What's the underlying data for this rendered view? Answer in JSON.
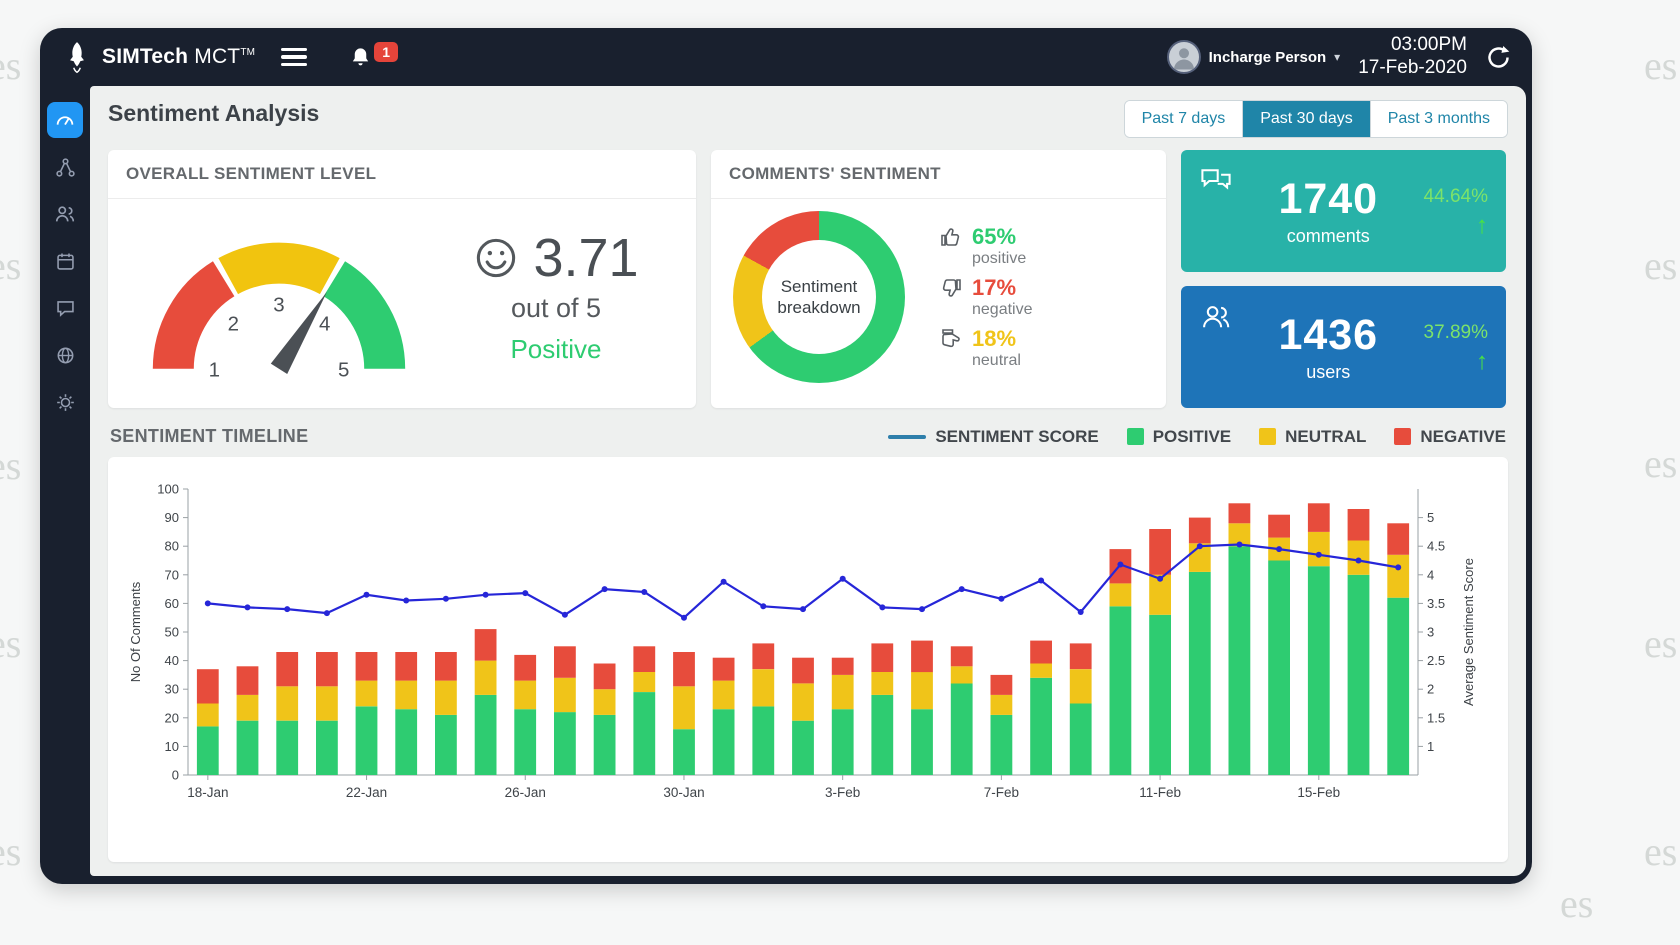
{
  "watermark": {
    "text": "es"
  },
  "header": {
    "brand_bold": "SIMTech",
    "brand_light": "MCT",
    "brand_tm": "TM",
    "notification_count": "1",
    "user_name": "Incharge Person",
    "time": "03:00PM",
    "date": "17-Feb-2020"
  },
  "sidebar": {
    "items": [
      "dashboard",
      "workflow",
      "users",
      "calendar",
      "comments",
      "globe",
      "settings"
    ]
  },
  "page": {
    "title": "Sentiment Analysis",
    "ranges": [
      {
        "label": "Past 7 days",
        "active": false
      },
      {
        "label": "Past 30 days",
        "active": true
      },
      {
        "label": "Past 3 months",
        "active": false
      }
    ]
  },
  "overall": {
    "title": "OVERALL SENTIMENT LEVEL",
    "score": "3.71",
    "out_of": "out of 5",
    "status": "Positive",
    "status_color": "#2ecc71",
    "gauge": {
      "min": 1,
      "max": 5,
      "value": 3.71,
      "labels": [
        "1",
        "2",
        "3",
        "4",
        "5"
      ],
      "segments": [
        {
          "to": 2.33,
          "color": "#e74c3c"
        },
        {
          "to": 3.67,
          "color": "#f1c40f"
        },
        {
          "to": 5,
          "color": "#2ecc71"
        }
      ],
      "needle_color": "#4b5055"
    }
  },
  "comments_card": {
    "title": "COMMENTS' SENTIMENT",
    "donut": {
      "center_line1": "Sentiment",
      "center_line2": "breakdown",
      "slices": [
        {
          "label": "positive",
          "value": 65,
          "color": "#2ecc71"
        },
        {
          "label": "neutral",
          "value": 18,
          "color": "#f0c419"
        },
        {
          "label": "negative",
          "value": 17,
          "color": "#e74c3c"
        }
      ]
    },
    "stats": [
      {
        "value": "65%",
        "label": "positive",
        "color": "#2ecc71"
      },
      {
        "value": "17%",
        "label": "negative",
        "color": "#e74c3c"
      },
      {
        "value": "18%",
        "label": "neutral",
        "color": "#f0c419"
      }
    ]
  },
  "stat_cards": [
    {
      "value": "1740",
      "label": "comments",
      "delta": "44.64%",
      "delta_color": "#7ce36a",
      "bg": "#28b2a8"
    },
    {
      "value": "1436",
      "label": "users",
      "delta": "37.89%",
      "delta_color": "#7ce36a",
      "bg": "#1e74b8"
    }
  ],
  "timeline": {
    "title": "SENTIMENT TIMELINE",
    "legend": [
      {
        "label": "SENTIMENT SCORE",
        "color": "#2e7fab",
        "type": "line"
      },
      {
        "label": "POSITIVE",
        "color": "#2ecc71",
        "type": "box"
      },
      {
        "label": "NEUTRAL",
        "color": "#f0c419",
        "type": "box"
      },
      {
        "label": "NEGATIVE",
        "color": "#e74c3c",
        "type": "box"
      }
    ]
  },
  "chart_data": {
    "type": "stacked-bar+line",
    "title": "SENTIMENT TIMELINE",
    "x": [
      "18-Jan",
      "19-Jan",
      "20-Jan",
      "21-Jan",
      "22-Jan",
      "23-Jan",
      "24-Jan",
      "25-Jan",
      "26-Jan",
      "27-Jan",
      "28-Jan",
      "29-Jan",
      "30-Jan",
      "31-Jan",
      "1-Feb",
      "2-Feb",
      "3-Feb",
      "4-Feb",
      "5-Feb",
      "6-Feb",
      "7-Feb",
      "8-Feb",
      "9-Feb",
      "10-Feb",
      "11-Feb",
      "12-Feb",
      "13-Feb",
      "14-Feb",
      "15-Feb",
      "16-Feb",
      "17-Feb"
    ],
    "x_tick_labels": [
      "18-Jan",
      "22-Jan",
      "26-Jan",
      "30-Jan",
      "3-Feb",
      "7-Feb",
      "11-Feb",
      "15-Feb"
    ],
    "series": [
      {
        "name": "POSITIVE",
        "color": "#2ecc71",
        "values": [
          17,
          19,
          19,
          19,
          24,
          23,
          21,
          28,
          23,
          22,
          21,
          29,
          16,
          23,
          24,
          19,
          23,
          28,
          23,
          32,
          21,
          34,
          25,
          59,
          56,
          71,
          80,
          75,
          73,
          70,
          62
        ]
      },
      {
        "name": "NEUTRAL",
        "color": "#f0c419",
        "values": [
          8,
          9,
          12,
          12,
          9,
          10,
          12,
          12,
          10,
          12,
          9,
          7,
          15,
          10,
          13,
          13,
          12,
          8,
          13,
          6,
          7,
          5,
          12,
          8,
          14,
          10,
          8,
          8,
          12,
          12,
          15
        ]
      },
      {
        "name": "NEGATIVE",
        "color": "#e74c3c",
        "values": [
          12,
          10,
          12,
          12,
          10,
          10,
          10,
          11,
          9,
          11,
          9,
          9,
          12,
          8,
          9,
          9,
          6,
          10,
          11,
          7,
          7,
          8,
          9,
          12,
          16,
          9,
          7,
          8,
          10,
          11,
          11
        ]
      }
    ],
    "line": {
      "name": "SENTIMENT SCORE",
      "color": "#2626d8",
      "values": [
        3.5,
        3.43,
        3.4,
        3.33,
        3.65,
        3.55,
        3.58,
        3.65,
        3.68,
        3.3,
        3.75,
        3.7,
        3.25,
        3.88,
        3.45,
        3.4,
        3.93,
        3.43,
        3.4,
        3.75,
        3.58,
        3.9,
        3.35,
        4.18,
        3.93,
        4.5,
        4.53,
        4.45,
        4.35,
        4.25,
        4.13
      ]
    },
    "y_left": {
      "label": "No Of Comments",
      "min": 0,
      "max": 100,
      "step": 10
    },
    "y_right": {
      "label": "Average Sentiment Score",
      "min": 1,
      "max": 5,
      "step": 0.5
    },
    "legend_position": "top-right",
    "grid": false
  }
}
